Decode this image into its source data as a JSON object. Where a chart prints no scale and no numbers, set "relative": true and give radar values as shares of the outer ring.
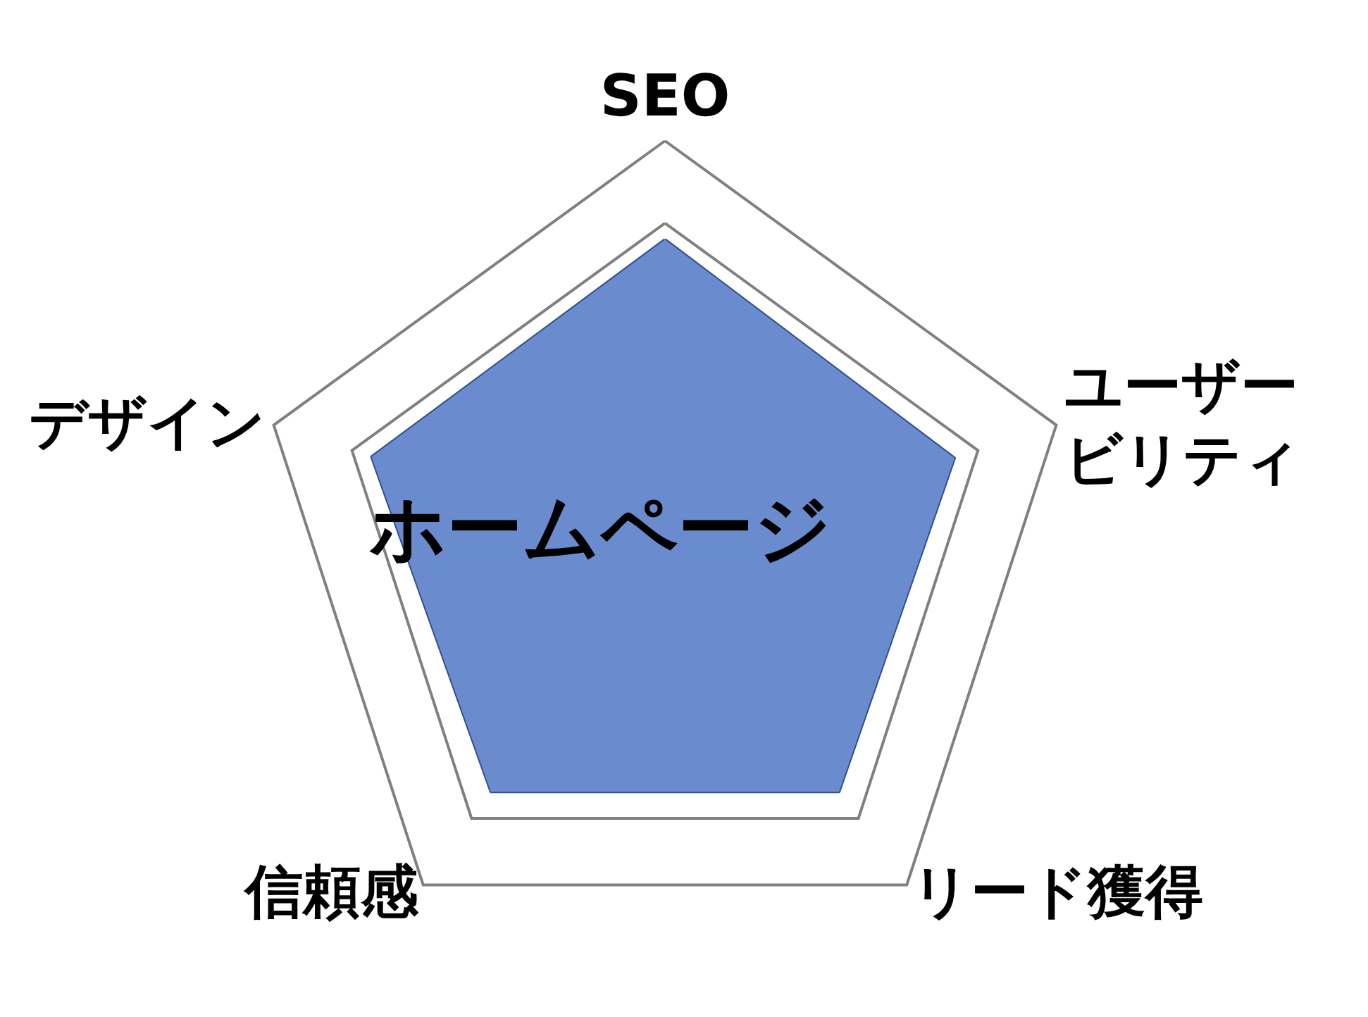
{
  "chart_data": {
    "type": "radar",
    "relative": true,
    "categories": [
      "SEO",
      "ユーザービリティ",
      "リード獲得",
      "信頼感",
      "デザイン"
    ],
    "grid": true,
    "legend": false,
    "series": [
      {
        "name": "ホームページ",
        "color": "#6a8ccf",
        "values": [
          0.76,
          0.74,
          0.72,
          0.72,
          0.75
        ]
      }
    ]
  }
}
